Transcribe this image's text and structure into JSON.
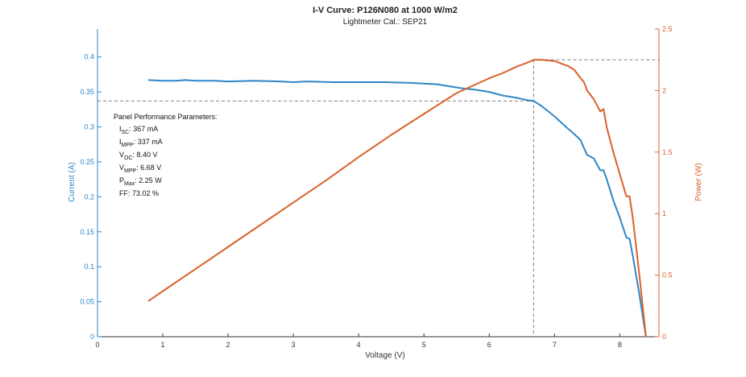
{
  "chart_data": {
    "type": "line",
    "title": "I-V Curve: P126N080 at 1000 W/m2",
    "subtitle": "Lightmeter Cal.: SEP21",
    "xlabel": "Voltage (V)",
    "ylabel_left": "Current (A)",
    "ylabel_right": "Power (W)",
    "xlim": [
      0,
      8.6
    ],
    "ylim_left": [
      0,
      0.44
    ],
    "ylim_right": [
      0,
      2.5
    ],
    "xticks": [
      "0",
      "1",
      "2",
      "3",
      "4",
      "5",
      "6",
      "7",
      "8"
    ],
    "yticks_left": [
      "0",
      "0.05",
      "0.1",
      "0.15",
      "0.2",
      "0.25",
      "0.3",
      "0.35",
      "0.4"
    ],
    "yticks_right": [
      "0",
      "0.5",
      "1",
      "1.5",
      "2",
      "2.5"
    ],
    "grid": false,
    "colors": {
      "current": "#2e86c8",
      "power": "#d9622b",
      "ref_line": "#808080",
      "axis": "#333333"
    },
    "series": [
      {
        "axis": "left",
        "x": [
          0.78,
          1.0,
          1.2,
          1.35,
          1.5,
          1.8,
          2.0,
          2.4,
          2.8,
          3.0,
          3.2,
          3.6,
          4.0,
          4.4,
          4.8,
          5.0,
          5.2,
          5.4,
          5.6,
          5.8,
          6.0,
          6.2,
          6.4,
          6.5,
          6.6,
          6.68,
          6.8,
          7.0,
          7.2,
          7.3,
          7.4,
          7.45,
          7.5,
          7.6,
          7.7,
          7.75,
          7.8,
          7.9,
          8.0,
          8.1,
          8.15,
          8.2,
          8.3,
          8.4
        ],
        "values": [
          0.367,
          0.366,
          0.366,
          0.367,
          0.366,
          0.366,
          0.365,
          0.366,
          0.365,
          0.364,
          0.365,
          0.364,
          0.364,
          0.364,
          0.363,
          0.362,
          0.361,
          0.358,
          0.355,
          0.353,
          0.35,
          0.345,
          0.342,
          0.34,
          0.338,
          0.337,
          0.33,
          0.315,
          0.298,
          0.29,
          0.281,
          0.27,
          0.26,
          0.255,
          0.238,
          0.238,
          0.225,
          0.195,
          0.17,
          0.142,
          0.14,
          0.115,
          0.06,
          0.0
        ]
      },
      {
        "axis": "right",
        "x": [
          0.78,
          1.0,
          1.5,
          2.0,
          2.5,
          3.0,
          3.5,
          4.0,
          4.5,
          5.0,
          5.5,
          6.0,
          6.2,
          6.4,
          6.5,
          6.6,
          6.68,
          6.8,
          7.0,
          7.2,
          7.3,
          7.4,
          7.45,
          7.5,
          7.6,
          7.7,
          7.75,
          7.8,
          7.9,
          8.0,
          8.1,
          8.15,
          8.2,
          8.3,
          8.4
        ],
        "values": [
          0.29,
          0.37,
          0.55,
          0.73,
          0.91,
          1.09,
          1.27,
          1.46,
          1.64,
          1.81,
          1.98,
          2.1,
          2.14,
          2.19,
          2.21,
          2.23,
          2.25,
          2.25,
          2.24,
          2.2,
          2.17,
          2.1,
          2.07,
          2.0,
          1.93,
          1.83,
          1.85,
          1.7,
          1.5,
          1.32,
          1.14,
          1.14,
          0.96,
          0.5,
          0.0
        ]
      }
    ],
    "mpp": {
      "voltage": 6.68,
      "current": 0.337,
      "power": 2.25
    },
    "annotation": {
      "heading": "Panel Performance Parameters:",
      "lines": [
        {
          "sym": "I",
          "sub": "SC",
          "val": ": 367 mA"
        },
        {
          "sym": "I",
          "sub": "MPP",
          "val": ": 337 mA"
        },
        {
          "sym": "V",
          "sub": "OC",
          "val": ": 8.40 V"
        },
        {
          "sym": "V",
          "sub": "MPP",
          "val": ": 6.68 V"
        },
        {
          "sym": "P",
          "sub": "Max",
          "val": ": 2.25 W"
        },
        {
          "sym": "FF",
          "sub": "",
          "val": ": 73.02 %"
        }
      ]
    }
  }
}
